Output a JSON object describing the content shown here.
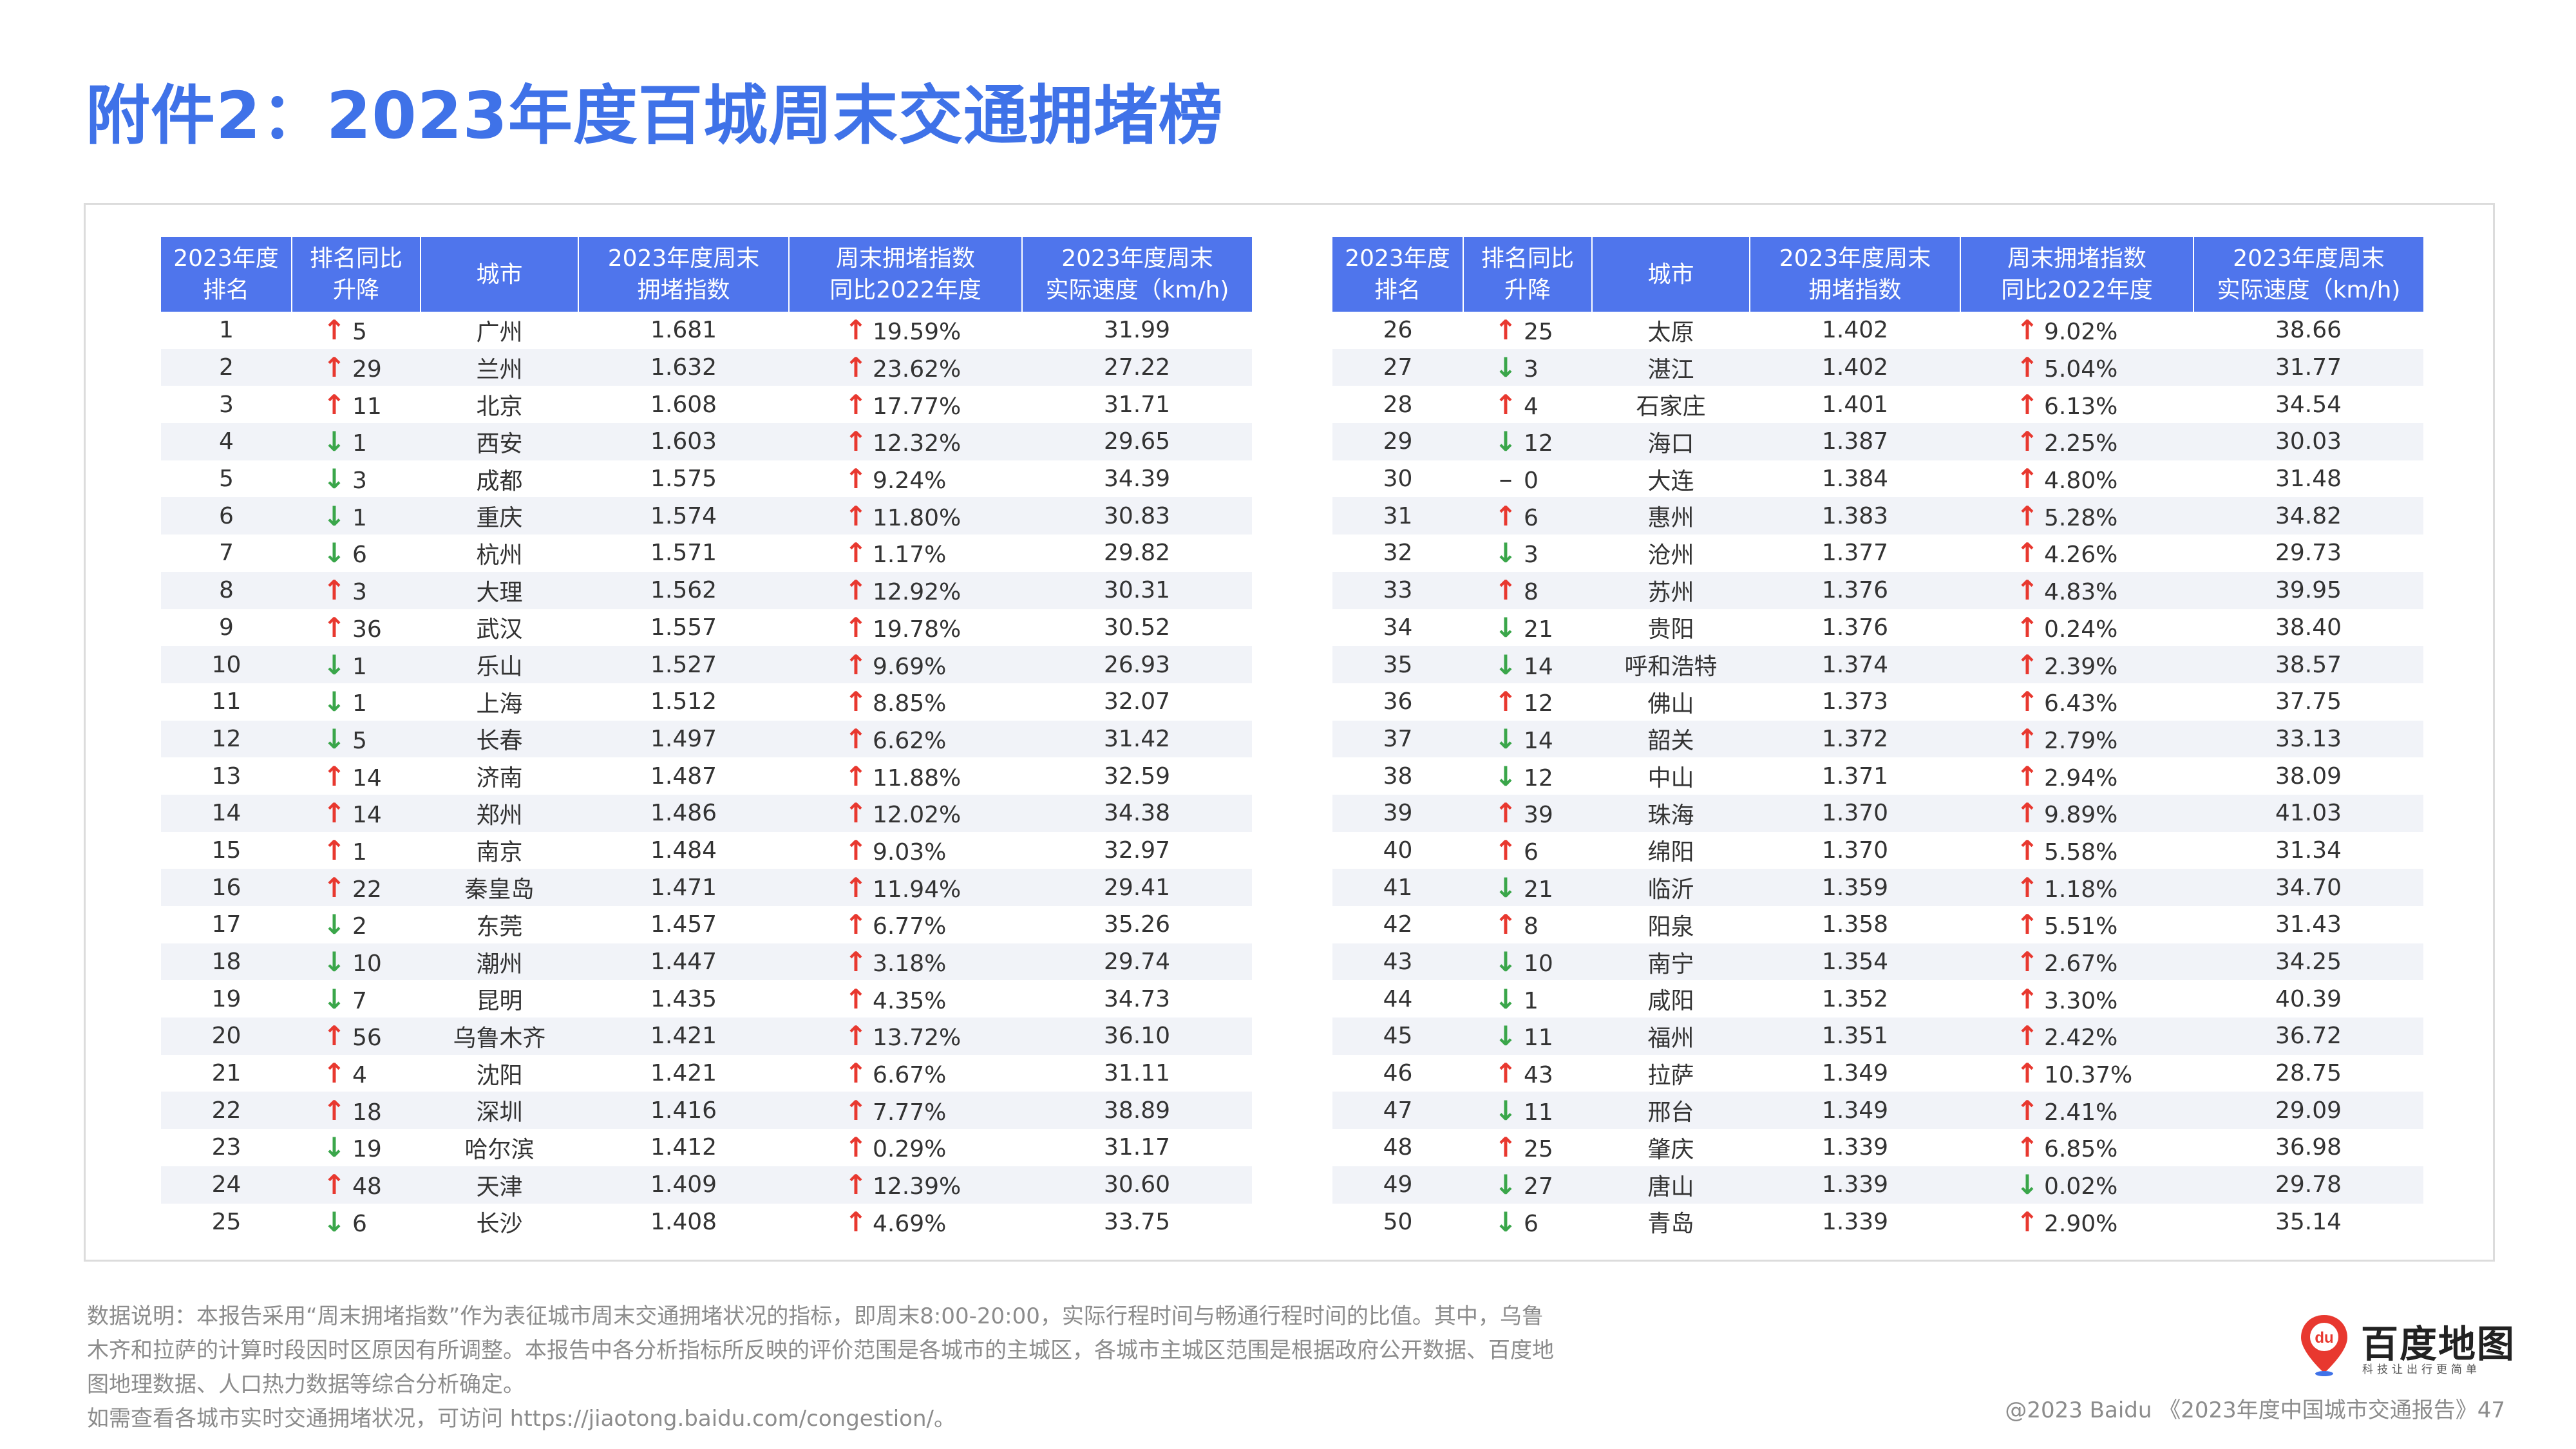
{
  "title": "附件2：2023年度百城周末交通拥堵榜",
  "colors": {
    "accent": "#3f72e8",
    "header_bg": "#4f75ec",
    "up": "#e8382f",
    "down": "#3aa64a",
    "stripe": "#f1f3f8"
  },
  "table": {
    "headers": [
      [
        "2023年度",
        "排名"
      ],
      [
        "排名同比",
        "升降"
      ],
      [
        "城市"
      ],
      [
        "2023年度周末",
        "拥堵指数"
      ],
      [
        "周末拥堵指数",
        "同比2022年度"
      ],
      [
        "2023年度周末",
        "实际速度（km/h)"
      ]
    ],
    "left_rows": [
      {
        "rank": "1",
        "dir": "up",
        "change": "5",
        "city": "广州",
        "index": "1.681",
        "pdir": "up",
        "pct": "19.59%",
        "speed": "31.99"
      },
      {
        "rank": "2",
        "dir": "up",
        "change": "29",
        "city": "兰州",
        "index": "1.632",
        "pdir": "up",
        "pct": "23.62%",
        "speed": "27.22"
      },
      {
        "rank": "3",
        "dir": "up",
        "change": "11",
        "city": "北京",
        "index": "1.608",
        "pdir": "up",
        "pct": "17.77%",
        "speed": "31.71"
      },
      {
        "rank": "4",
        "dir": "down",
        "change": "1",
        "city": "西安",
        "index": "1.603",
        "pdir": "up",
        "pct": "12.32%",
        "speed": "29.65"
      },
      {
        "rank": "5",
        "dir": "down",
        "change": "3",
        "city": "成都",
        "index": "1.575",
        "pdir": "up",
        "pct": "9.24%",
        "speed": "34.39"
      },
      {
        "rank": "6",
        "dir": "down",
        "change": "1",
        "city": "重庆",
        "index": "1.574",
        "pdir": "up",
        "pct": "11.80%",
        "speed": "30.83"
      },
      {
        "rank": "7",
        "dir": "down",
        "change": "6",
        "city": "杭州",
        "index": "1.571",
        "pdir": "up",
        "pct": "1.17%",
        "speed": "29.82"
      },
      {
        "rank": "8",
        "dir": "up",
        "change": "3",
        "city": "大理",
        "index": "1.562",
        "pdir": "up",
        "pct": "12.92%",
        "speed": "30.31"
      },
      {
        "rank": "9",
        "dir": "up",
        "change": "36",
        "city": "武汉",
        "index": "1.557",
        "pdir": "up",
        "pct": "19.78%",
        "speed": "30.52"
      },
      {
        "rank": "10",
        "dir": "down",
        "change": "1",
        "city": "乐山",
        "index": "1.527",
        "pdir": "up",
        "pct": "9.69%",
        "speed": "26.93"
      },
      {
        "rank": "11",
        "dir": "down",
        "change": "1",
        "city": "上海",
        "index": "1.512",
        "pdir": "up",
        "pct": "8.85%",
        "speed": "32.07"
      },
      {
        "rank": "12",
        "dir": "down",
        "change": "5",
        "city": "长春",
        "index": "1.497",
        "pdir": "up",
        "pct": "6.62%",
        "speed": "31.42"
      },
      {
        "rank": "13",
        "dir": "up",
        "change": "14",
        "city": "济南",
        "index": "1.487",
        "pdir": "up",
        "pct": "11.88%",
        "speed": "32.59"
      },
      {
        "rank": "14",
        "dir": "up",
        "change": "14",
        "city": "郑州",
        "index": "1.486",
        "pdir": "up",
        "pct": "12.02%",
        "speed": "34.38"
      },
      {
        "rank": "15",
        "dir": "up",
        "change": "1",
        "city": "南京",
        "index": "1.484",
        "pdir": "up",
        "pct": "9.03%",
        "speed": "32.97"
      },
      {
        "rank": "16",
        "dir": "up",
        "change": "22",
        "city": "秦皇岛",
        "index": "1.471",
        "pdir": "up",
        "pct": "11.94%",
        "speed": "29.41"
      },
      {
        "rank": "17",
        "dir": "down",
        "change": "2",
        "city": "东莞",
        "index": "1.457",
        "pdir": "up",
        "pct": "6.77%",
        "speed": "35.26"
      },
      {
        "rank": "18",
        "dir": "down",
        "change": "10",
        "city": "潮州",
        "index": "1.447",
        "pdir": "up",
        "pct": "3.18%",
        "speed": "29.74"
      },
      {
        "rank": "19",
        "dir": "down",
        "change": "7",
        "city": "昆明",
        "index": "1.435",
        "pdir": "up",
        "pct": "4.35%",
        "speed": "34.73"
      },
      {
        "rank": "20",
        "dir": "up",
        "change": "56",
        "city": "乌鲁木齐",
        "index": "1.421",
        "pdir": "up",
        "pct": "13.72%",
        "speed": "36.10"
      },
      {
        "rank": "21",
        "dir": "up",
        "change": "4",
        "city": "沈阳",
        "index": "1.421",
        "pdir": "up",
        "pct": "6.67%",
        "speed": "31.11"
      },
      {
        "rank": "22",
        "dir": "up",
        "change": "18",
        "city": "深圳",
        "index": "1.416",
        "pdir": "up",
        "pct": "7.77%",
        "speed": "38.89"
      },
      {
        "rank": "23",
        "dir": "down",
        "change": "19",
        "city": "哈尔滨",
        "index": "1.412",
        "pdir": "up",
        "pct": "0.29%",
        "speed": "31.17"
      },
      {
        "rank": "24",
        "dir": "up",
        "change": "48",
        "city": "天津",
        "index": "1.409",
        "pdir": "up",
        "pct": "12.39%",
        "speed": "30.60"
      },
      {
        "rank": "25",
        "dir": "down",
        "change": "6",
        "city": "长沙",
        "index": "1.408",
        "pdir": "up",
        "pct": "4.69%",
        "speed": "33.75"
      }
    ],
    "right_rows": [
      {
        "rank": "26",
        "dir": "up",
        "change": "25",
        "city": "太原",
        "index": "1.402",
        "pdir": "up",
        "pct": "9.02%",
        "speed": "38.66"
      },
      {
        "rank": "27",
        "dir": "down",
        "change": "3",
        "city": "湛江",
        "index": "1.402",
        "pdir": "up",
        "pct": "5.04%",
        "speed": "31.77"
      },
      {
        "rank": "28",
        "dir": "up",
        "change": "4",
        "city": "石家庄",
        "index": "1.401",
        "pdir": "up",
        "pct": "6.13%",
        "speed": "34.54"
      },
      {
        "rank": "29",
        "dir": "down",
        "change": "12",
        "city": "海口",
        "index": "1.387",
        "pdir": "up",
        "pct": "2.25%",
        "speed": "30.03"
      },
      {
        "rank": "30",
        "dir": "flat",
        "change": "0",
        "city": "大连",
        "index": "1.384",
        "pdir": "up",
        "pct": "4.80%",
        "speed": "31.48"
      },
      {
        "rank": "31",
        "dir": "up",
        "change": "6",
        "city": "惠州",
        "index": "1.383",
        "pdir": "up",
        "pct": "5.28%",
        "speed": "34.82"
      },
      {
        "rank": "32",
        "dir": "down",
        "change": "3",
        "city": "沧州",
        "index": "1.377",
        "pdir": "up",
        "pct": "4.26%",
        "speed": "29.73"
      },
      {
        "rank": "33",
        "dir": "up",
        "change": "8",
        "city": "苏州",
        "index": "1.376",
        "pdir": "up",
        "pct": "4.83%",
        "speed": "39.95"
      },
      {
        "rank": "34",
        "dir": "down",
        "change": "21",
        "city": "贵阳",
        "index": "1.376",
        "pdir": "up",
        "pct": "0.24%",
        "speed": "38.40"
      },
      {
        "rank": "35",
        "dir": "down",
        "change": "14",
        "city": "呼和浩特",
        "index": "1.374",
        "pdir": "up",
        "pct": "2.39%",
        "speed": "38.57"
      },
      {
        "rank": "36",
        "dir": "up",
        "change": "12",
        "city": "佛山",
        "index": "1.373",
        "pdir": "up",
        "pct": "6.43%",
        "speed": "37.75"
      },
      {
        "rank": "37",
        "dir": "down",
        "change": "14",
        "city": "韶关",
        "index": "1.372",
        "pdir": "up",
        "pct": "2.79%",
        "speed": "33.13"
      },
      {
        "rank": "38",
        "dir": "down",
        "change": "12",
        "city": "中山",
        "index": "1.371",
        "pdir": "up",
        "pct": "2.94%",
        "speed": "38.09"
      },
      {
        "rank": "39",
        "dir": "up",
        "change": "39",
        "city": "珠海",
        "index": "1.370",
        "pdir": "up",
        "pct": "9.89%",
        "speed": "41.03"
      },
      {
        "rank": "40",
        "dir": "up",
        "change": "6",
        "city": "绵阳",
        "index": "1.370",
        "pdir": "up",
        "pct": "5.58%",
        "speed": "31.34"
      },
      {
        "rank": "41",
        "dir": "down",
        "change": "21",
        "city": "临沂",
        "index": "1.359",
        "pdir": "up",
        "pct": "1.18%",
        "speed": "34.70"
      },
      {
        "rank": "42",
        "dir": "up",
        "change": "8",
        "city": "阳泉",
        "index": "1.358",
        "pdir": "up",
        "pct": "5.51%",
        "speed": "31.43"
      },
      {
        "rank": "43",
        "dir": "down",
        "change": "10",
        "city": "南宁",
        "index": "1.354",
        "pdir": "up",
        "pct": "2.67%",
        "speed": "34.25"
      },
      {
        "rank": "44",
        "dir": "down",
        "change": "1",
        "city": "咸阳",
        "index": "1.352",
        "pdir": "up",
        "pct": "3.30%",
        "speed": "40.39"
      },
      {
        "rank": "45",
        "dir": "down",
        "change": "11",
        "city": "福州",
        "index": "1.351",
        "pdir": "up",
        "pct": "2.42%",
        "speed": "36.72"
      },
      {
        "rank": "46",
        "dir": "up",
        "change": "43",
        "city": "拉萨",
        "index": "1.349",
        "pdir": "up",
        "pct": "10.37%",
        "speed": "28.75"
      },
      {
        "rank": "47",
        "dir": "down",
        "change": "11",
        "city": "邢台",
        "index": "1.349",
        "pdir": "up",
        "pct": "2.41%",
        "speed": "29.09"
      },
      {
        "rank": "48",
        "dir": "up",
        "change": "25",
        "city": "肇庆",
        "index": "1.339",
        "pdir": "up",
        "pct": "6.85%",
        "speed": "36.98"
      },
      {
        "rank": "49",
        "dir": "down",
        "change": "27",
        "city": "唐山",
        "index": "1.339",
        "pdir": "down",
        "pct": "0.02%",
        "speed": "29.78"
      },
      {
        "rank": "50",
        "dir": "down",
        "change": "6",
        "city": "青岛",
        "index": "1.339",
        "pdir": "up",
        "pct": "2.90%",
        "speed": "35.14"
      }
    ]
  },
  "footnote": {
    "lines": [
      "数据说明：本报告采用“周末拥堵指数”作为表征城市周末交通拥堵状况的指标，即周末8:00-20:00，实际行程时间与畅通行程时间的比值。其中，乌鲁",
      "木齐和拉萨的计算时段因时区原因有所调整。本报告中各分析指标所反映的评价范围是各城市的主城区，各城市主城区范围是根据政府公开数据、百度地",
      "图地理数据、人口热力数据等综合分析确定。",
      "如需查看各城市实时交通拥堵状况，可访问 https://jiaotong.baidu.com/congestion/。"
    ]
  },
  "logo": {
    "mark": "du",
    "name": "百度地图",
    "slogan": "科技让出行更简单"
  },
  "copyright": "@2023 Baidu 《2023年度中国城市交通报告》47",
  "icons": {
    "up": "arrow-up-icon",
    "down": "arrow-down-icon",
    "flat": "dash-icon"
  }
}
